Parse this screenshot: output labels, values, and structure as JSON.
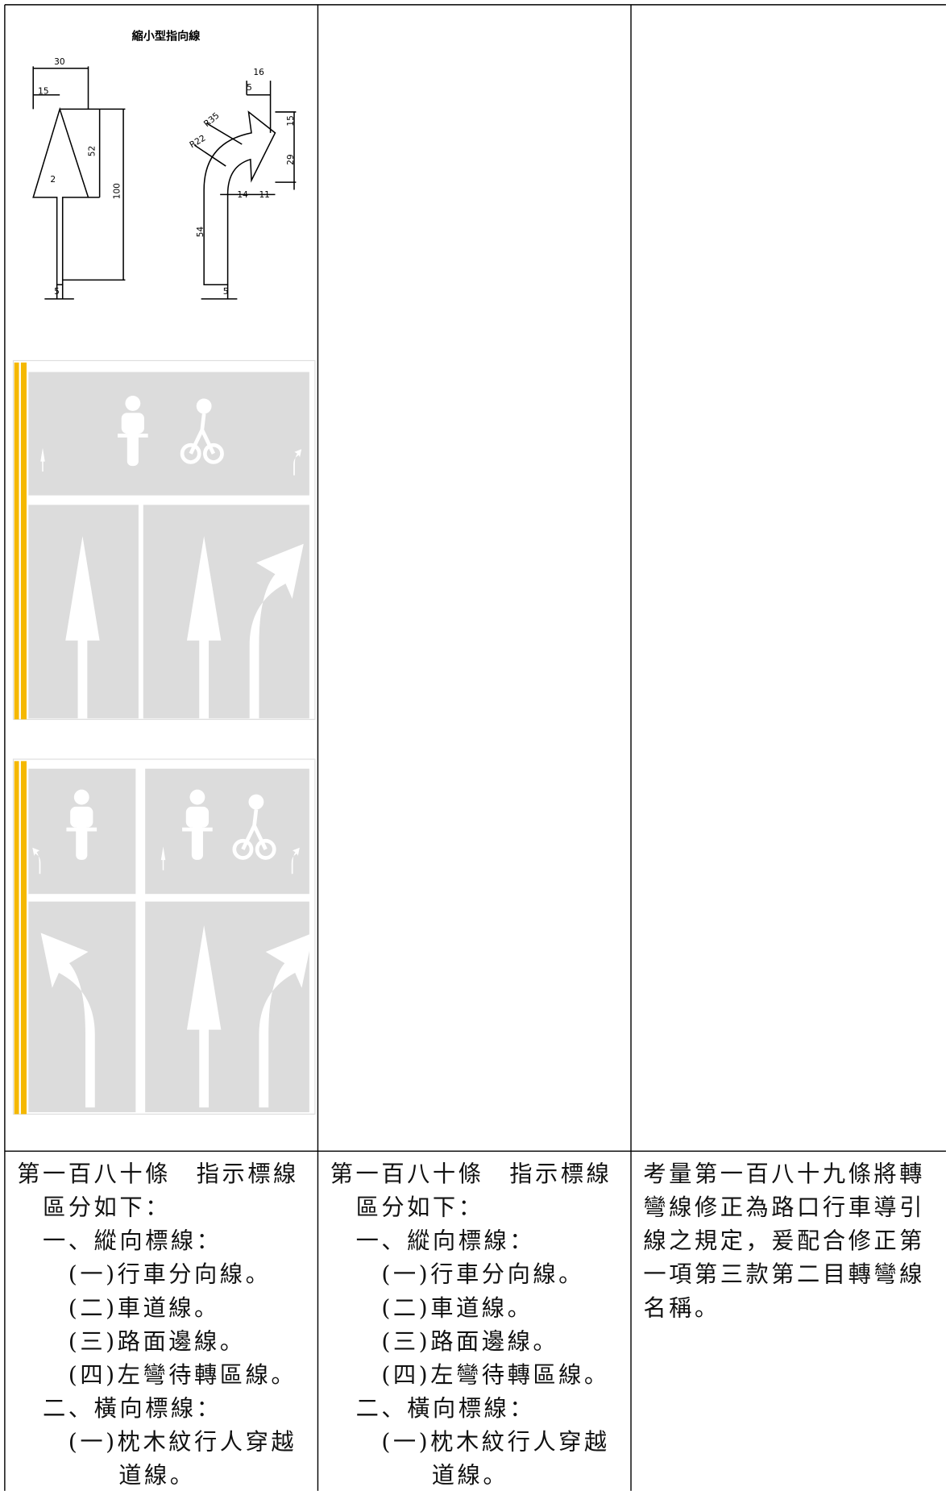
{
  "figure": {
    "title": "縮小型指向線",
    "dimensions": [
      "30",
      "15",
      "52",
      "100",
      "2",
      "5",
      "16",
      "5",
      "R35",
      "R22",
      "15",
      "29",
      "14",
      "11",
      "54",
      "5"
    ]
  },
  "table": {
    "rows": [
      [
        [
          "第一百八十條　指示標線",
          "區分如下：",
          "一、縱向標線：",
          "(一)行車分向線。",
          "(二)車道線。",
          "(三)路面邊線。",
          "(四)左彎待轉區線。",
          "二、橫向標線：",
          "(一)枕木紋行人穿越",
          "道線。"
        ],
        [
          "第一百八十條　指示標線",
          "區分如下：",
          "一、縱向標線：",
          "(一)行車分向線。",
          "(二)車道線。",
          "(三)路面邊線。",
          "(四)左彎待轉區線。",
          "二、橫向標線：",
          "(一)枕木紋行人穿越",
          "道線。"
        ],
        [
          "考量第一百八十九條將轉",
          "彎線修正為路口行車導引",
          "線之規定，爰配合修正第",
          "一項第三款第二目轉彎線",
          "名稱。"
        ]
      ]
    ]
  }
}
